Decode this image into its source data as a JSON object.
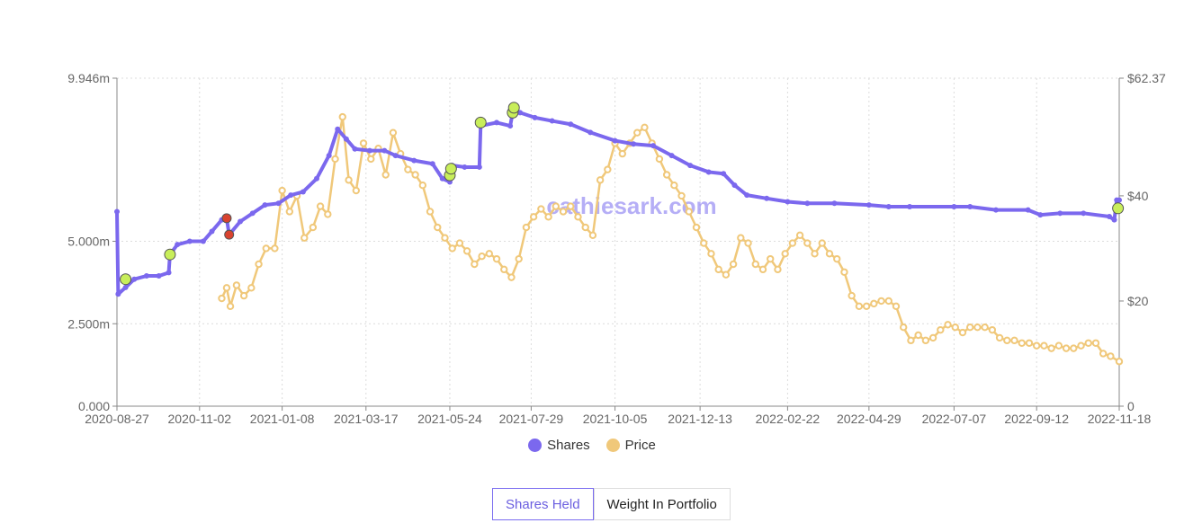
{
  "watermark": "cathiesark.com",
  "chart_data": {
    "type": "line",
    "x_start": "2020-08-27",
    "x_end": "2022-11-18",
    "x_ticks": [
      "2020-08-27",
      "2020-11-02",
      "2021-01-08",
      "2021-03-17",
      "2021-05-24",
      "2021-07-29",
      "2021-10-05",
      "2021-12-13",
      "2022-02-22",
      "2022-04-29",
      "2022-07-07",
      "2022-09-12",
      "2022-11-18"
    ],
    "y_left": {
      "min": 0,
      "max": 9.946,
      "unit": "m",
      "ticks": [
        "0.000",
        "2.500m",
        "5.000m",
        "9.946m"
      ],
      "tick_values": [
        0,
        2.5,
        5.0,
        9.946
      ]
    },
    "y_right": {
      "min": 0,
      "max": 62.37,
      "ticks": [
        "0",
        "$20",
        "$40",
        "$62.37"
      ],
      "tick_values": [
        0,
        20,
        40,
        62.37
      ]
    },
    "grid": true,
    "legend_position": "bottom",
    "series": [
      {
        "name": "Shares",
        "axis": "left",
        "color": "#7b68ee",
        "points": [
          [
            "2020-08-27",
            5.9
          ],
          [
            "2020-08-28",
            3.4
          ],
          [
            "2020-09-03",
            3.6
          ],
          [
            "2020-09-10",
            3.85
          ],
          [
            "2020-09-20",
            3.95
          ],
          [
            "2020-09-30",
            3.95
          ],
          [
            "2020-10-08",
            4.05
          ],
          [
            "2020-10-09",
            4.6
          ],
          [
            "2020-10-15",
            4.9
          ],
          [
            "2020-10-25",
            5.0
          ],
          [
            "2020-11-05",
            5.0
          ],
          [
            "2020-11-12",
            5.3
          ],
          [
            "2020-11-20",
            5.65
          ],
          [
            "2020-11-24",
            5.7
          ],
          [
            "2020-11-26",
            5.2
          ],
          [
            "2020-12-05",
            5.6
          ],
          [
            "2020-12-15",
            5.85
          ],
          [
            "2020-12-25",
            6.1
          ],
          [
            "2021-01-05",
            6.15
          ],
          [
            "2021-01-15",
            6.4
          ],
          [
            "2021-01-25",
            6.5
          ],
          [
            "2021-02-05",
            6.9
          ],
          [
            "2021-02-15",
            7.6
          ],
          [
            "2021-02-22",
            8.4
          ],
          [
            "2021-03-01",
            8.1
          ],
          [
            "2021-03-08",
            7.8
          ],
          [
            "2021-03-20",
            7.75
          ],
          [
            "2021-04-01",
            7.75
          ],
          [
            "2021-04-10",
            7.6
          ],
          [
            "2021-04-25",
            7.45
          ],
          [
            "2021-05-10",
            7.35
          ],
          [
            "2021-05-18",
            6.9
          ],
          [
            "2021-05-24",
            6.8
          ],
          [
            "2021-05-26",
            7.3
          ],
          [
            "2021-06-05",
            7.25
          ],
          [
            "2021-06-17",
            7.25
          ],
          [
            "2021-06-18",
            8.5
          ],
          [
            "2021-07-01",
            8.6
          ],
          [
            "2021-07-12",
            8.5
          ],
          [
            "2021-07-14",
            8.9
          ],
          [
            "2021-07-20",
            8.9
          ],
          [
            "2021-08-01",
            8.75
          ],
          [
            "2021-08-15",
            8.65
          ],
          [
            "2021-08-30",
            8.55
          ],
          [
            "2021-09-15",
            8.3
          ],
          [
            "2021-10-05",
            8.05
          ],
          [
            "2021-10-20",
            7.95
          ],
          [
            "2021-11-05",
            7.9
          ],
          [
            "2021-11-20",
            7.6
          ],
          [
            "2021-12-05",
            7.3
          ],
          [
            "2021-12-20",
            7.1
          ],
          [
            "2022-01-01",
            7.05
          ],
          [
            "2022-01-10",
            6.7
          ],
          [
            "2022-01-20",
            6.4
          ],
          [
            "2022-02-05",
            6.3
          ],
          [
            "2022-02-22",
            6.2
          ],
          [
            "2022-03-10",
            6.15
          ],
          [
            "2022-04-01",
            6.15
          ],
          [
            "2022-04-29",
            6.1
          ],
          [
            "2022-05-15",
            6.05
          ],
          [
            "2022-06-01",
            6.05
          ],
          [
            "2022-07-07",
            6.05
          ],
          [
            "2022-07-20",
            6.05
          ],
          [
            "2022-08-10",
            5.95
          ],
          [
            "2022-09-05",
            5.95
          ],
          [
            "2022-09-15",
            5.8
          ],
          [
            "2022-10-01",
            5.85
          ],
          [
            "2022-10-20",
            5.85
          ],
          [
            "2022-11-10",
            5.75
          ],
          [
            "2022-11-14",
            5.65
          ],
          [
            "2022-11-16",
            6.25
          ],
          [
            "2022-11-18",
            6.25
          ]
        ],
        "markers_buy": [
          [
            "2020-09-03",
            3.85
          ],
          [
            "2020-10-09",
            4.6
          ],
          [
            "2021-05-24",
            7.0
          ],
          [
            "2021-05-25",
            7.2
          ],
          [
            "2021-06-18",
            8.6
          ],
          [
            "2021-07-14",
            8.9
          ],
          [
            "2021-07-15",
            9.05
          ],
          [
            "2022-11-17",
            6.0
          ]
        ],
        "markers_sell": [
          [
            "2020-11-24",
            5.7
          ],
          [
            "2020-11-26",
            5.2
          ]
        ]
      },
      {
        "name": "Price",
        "axis": "right",
        "color": "#f0c87a",
        "points": [
          [
            "2020-11-20",
            20.5
          ],
          [
            "2020-11-24",
            22.5
          ],
          [
            "2020-11-27",
            19.0
          ],
          [
            "2020-12-02",
            23.0
          ],
          [
            "2020-12-08",
            21.0
          ],
          [
            "2020-12-14",
            22.5
          ],
          [
            "2020-12-20",
            27.0
          ],
          [
            "2020-12-26",
            30.0
          ],
          [
            "2021-01-02",
            30.0
          ],
          [
            "2021-01-08",
            41.0
          ],
          [
            "2021-01-14",
            37.0
          ],
          [
            "2021-01-20",
            40.0
          ],
          [
            "2021-01-26",
            32.0
          ],
          [
            "2021-02-02",
            34.0
          ],
          [
            "2021-02-08",
            38.0
          ],
          [
            "2021-02-14",
            36.5
          ],
          [
            "2021-02-20",
            47.0
          ],
          [
            "2021-02-26",
            55.0
          ],
          [
            "2021-03-03",
            43.0
          ],
          [
            "2021-03-09",
            41.0
          ],
          [
            "2021-03-15",
            50.0
          ],
          [
            "2021-03-21",
            47.0
          ],
          [
            "2021-03-27",
            49.0
          ],
          [
            "2021-04-02",
            44.0
          ],
          [
            "2021-04-08",
            52.0
          ],
          [
            "2021-04-14",
            48.0
          ],
          [
            "2021-04-20",
            45.0
          ],
          [
            "2021-04-26",
            44.0
          ],
          [
            "2021-05-02",
            42.0
          ],
          [
            "2021-05-08",
            37.0
          ],
          [
            "2021-05-14",
            34.0
          ],
          [
            "2021-05-20",
            32.0
          ],
          [
            "2021-05-26",
            30.0
          ],
          [
            "2021-06-01",
            31.0
          ],
          [
            "2021-06-07",
            29.5
          ],
          [
            "2021-06-13",
            27.0
          ],
          [
            "2021-06-19",
            28.5
          ],
          [
            "2021-06-25",
            29.0
          ],
          [
            "2021-07-01",
            28.0
          ],
          [
            "2021-07-07",
            26.0
          ],
          [
            "2021-07-13",
            24.5
          ],
          [
            "2021-07-19",
            28.0
          ],
          [
            "2021-07-25",
            34.0
          ],
          [
            "2021-07-31",
            36.0
          ],
          [
            "2021-08-06",
            37.5
          ],
          [
            "2021-08-12",
            36.0
          ],
          [
            "2021-08-18",
            38.0
          ],
          [
            "2021-08-24",
            37.0
          ],
          [
            "2021-08-30",
            38.0
          ],
          [
            "2021-09-05",
            36.0
          ],
          [
            "2021-09-11",
            34.0
          ],
          [
            "2021-09-17",
            32.5
          ],
          [
            "2021-09-23",
            43.0
          ],
          [
            "2021-09-29",
            45.0
          ],
          [
            "2021-10-05",
            50.0
          ],
          [
            "2021-10-11",
            48.0
          ],
          [
            "2021-10-17",
            50.0
          ],
          [
            "2021-10-23",
            52.0
          ],
          [
            "2021-10-29",
            53.0
          ],
          [
            "2021-11-04",
            50.0
          ],
          [
            "2021-11-10",
            47.0
          ],
          [
            "2021-11-16",
            44.0
          ],
          [
            "2021-11-22",
            42.0
          ],
          [
            "2021-11-28",
            40.0
          ],
          [
            "2021-12-04",
            37.0
          ],
          [
            "2021-12-10",
            34.0
          ],
          [
            "2021-12-16",
            31.0
          ],
          [
            "2021-12-22",
            29.0
          ],
          [
            "2021-12-28",
            26.0
          ],
          [
            "2022-01-03",
            25.0
          ],
          [
            "2022-01-09",
            27.0
          ],
          [
            "2022-01-15",
            32.0
          ],
          [
            "2022-01-21",
            31.0
          ],
          [
            "2022-01-27",
            27.0
          ],
          [
            "2022-02-02",
            26.0
          ],
          [
            "2022-02-08",
            28.0
          ],
          [
            "2022-02-14",
            26.0
          ],
          [
            "2022-02-20",
            29.0
          ],
          [
            "2022-02-26",
            31.0
          ],
          [
            "2022-03-04",
            32.5
          ],
          [
            "2022-03-10",
            31.0
          ],
          [
            "2022-03-16",
            29.0
          ],
          [
            "2022-03-22",
            31.0
          ],
          [
            "2022-03-28",
            29.0
          ],
          [
            "2022-04-03",
            28.0
          ],
          [
            "2022-04-09",
            25.5
          ],
          [
            "2022-04-15",
            21.0
          ],
          [
            "2022-04-21",
            19.0
          ],
          [
            "2022-04-27",
            19.0
          ],
          [
            "2022-05-03",
            19.5
          ],
          [
            "2022-05-09",
            20.0
          ],
          [
            "2022-05-15",
            20.0
          ],
          [
            "2022-05-21",
            19.0
          ],
          [
            "2022-05-27",
            15.0
          ],
          [
            "2022-06-02",
            12.5
          ],
          [
            "2022-06-08",
            13.5
          ],
          [
            "2022-06-14",
            12.5
          ],
          [
            "2022-06-20",
            13.0
          ],
          [
            "2022-06-26",
            14.5
          ],
          [
            "2022-07-02",
            15.5
          ],
          [
            "2022-07-08",
            15.0
          ],
          [
            "2022-07-14",
            14.0
          ],
          [
            "2022-07-20",
            15.0
          ],
          [
            "2022-07-26",
            15.0
          ],
          [
            "2022-08-01",
            15.0
          ],
          [
            "2022-08-07",
            14.5
          ],
          [
            "2022-08-13",
            13.0
          ],
          [
            "2022-08-19",
            12.5
          ],
          [
            "2022-08-25",
            12.5
          ],
          [
            "2022-08-31",
            12.0
          ],
          [
            "2022-09-06",
            12.0
          ],
          [
            "2022-09-12",
            11.5
          ],
          [
            "2022-09-18",
            11.5
          ],
          [
            "2022-09-24",
            11.0
          ],
          [
            "2022-09-30",
            11.5
          ],
          [
            "2022-10-06",
            11.0
          ],
          [
            "2022-10-12",
            11.0
          ],
          [
            "2022-10-18",
            11.5
          ],
          [
            "2022-10-24",
            12.0
          ],
          [
            "2022-10-30",
            12.0
          ],
          [
            "2022-11-05",
            10.0
          ],
          [
            "2022-11-11",
            9.5
          ],
          [
            "2022-11-18",
            8.5
          ]
        ]
      }
    ]
  },
  "legend": [
    {
      "label": "Shares",
      "color": "#7b68ee"
    },
    {
      "label": "Price",
      "color": "#f0c87a"
    }
  ],
  "toggle": {
    "shares_held": "Shares Held",
    "weight_in_portfolio": "Weight In Portfolio"
  }
}
